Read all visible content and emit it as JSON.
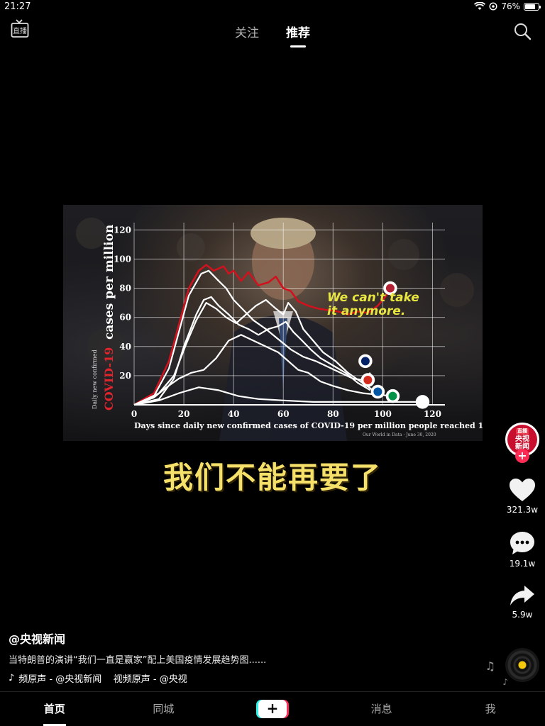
{
  "status_bar": {
    "time": "21:27",
    "battery": "76%",
    "battery_level": 0.76
  },
  "top_bar": {
    "tabs": [
      {
        "label": "关注"
      },
      {
        "label": "推荐"
      }
    ],
    "active_tab": "推荐",
    "live_icon": "live-tv-icon",
    "search_icon": "search-icon"
  },
  "video": {
    "subtitle": "我们不能再要了",
    "overlay_text": [
      "We can't take",
      "it anymore."
    ],
    "chart_data": {
      "type": "line",
      "ylabel_main": "cases per million",
      "ylabel_red": "COVID-19",
      "ylabel_small": "Daily new confirmed",
      "xlabel": "Days since daily new confirmed cases of COVID-19 per million people reached 1",
      "source": "Our World in Data · June 30, 2020",
      "xlim": [
        0,
        125
      ],
      "ylim": [
        0,
        125
      ],
      "x_ticks": [
        "0",
        "20",
        "40",
        "60",
        "80",
        "100",
        "120"
      ],
      "y_ticks": [
        "20",
        "40",
        "60",
        "80",
        "100",
        "120"
      ],
      "grid": true,
      "series": [
        {
          "color": "#d0121e",
          "points": [
            [
              0,
              0
            ],
            [
              8,
              8
            ],
            [
              14,
              30
            ],
            [
              18,
              55
            ],
            [
              22,
              80
            ],
            [
              26,
              92
            ],
            [
              29,
              96
            ],
            [
              32,
              92
            ],
            [
              36,
              95
            ],
            [
              38,
              90
            ],
            [
              40,
              92
            ],
            [
              43,
              85
            ],
            [
              46,
              91
            ],
            [
              50,
              82
            ],
            [
              54,
              84
            ],
            [
              57,
              88
            ],
            [
              60,
              80
            ],
            [
              63,
              78
            ],
            [
              66,
              71
            ],
            [
              70,
              68
            ],
            [
              74,
              66
            ],
            [
              78,
              65
            ],
            [
              82,
              64
            ],
            [
              86,
              62
            ],
            [
              90,
              64
            ],
            [
              94,
              63
            ],
            [
              98,
              68
            ],
            [
              101,
              74
            ],
            [
              103,
              80
            ],
            [
              105,
              78
            ]
          ]
        },
        {
          "color": "#ffffff",
          "points": [
            [
              0,
              0
            ],
            [
              8,
              6
            ],
            [
              14,
              25
            ],
            [
              18,
              50
            ],
            [
              22,
              75
            ],
            [
              27,
              90
            ],
            [
              30,
              92
            ],
            [
              34,
              85
            ],
            [
              37,
              80
            ],
            [
              40,
              72
            ],
            [
              44,
              65
            ],
            [
              48,
              58
            ],
            [
              53,
              52
            ],
            [
              58,
              45
            ],
            [
              63,
              38
            ],
            [
              68,
              33
            ],
            [
              73,
              30
            ],
            [
              78,
              26
            ],
            [
              83,
              22
            ],
            [
              88,
              18
            ],
            [
              92,
              17
            ],
            [
              95,
              22
            ]
          ]
        },
        {
          "color": "#ffffff",
          "points": [
            [
              0,
              0
            ],
            [
              10,
              4
            ],
            [
              16,
              18
            ],
            [
              20,
              40
            ],
            [
              25,
              62
            ],
            [
              28,
              72
            ],
            [
              31,
              74
            ],
            [
              34,
              68
            ],
            [
              38,
              62
            ],
            [
              42,
              55
            ],
            [
              46,
              52
            ],
            [
              50,
              48
            ],
            [
              54,
              52
            ],
            [
              58,
              54
            ],
            [
              61,
              57
            ],
            [
              64,
              50
            ],
            [
              67,
              45
            ],
            [
              71,
              38
            ],
            [
              75,
              32
            ],
            [
              80,
              27
            ],
            [
              85,
              22
            ],
            [
              90,
              15
            ],
            [
              95,
              10
            ]
          ]
        },
        {
          "color": "#ffffff",
          "points": [
            [
              0,
              0
            ],
            [
              10,
              8
            ],
            [
              16,
              20
            ],
            [
              21,
              42
            ],
            [
              25,
              58
            ],
            [
              29,
              70
            ],
            [
              33,
              66
            ],
            [
              37,
              60
            ],
            [
              41,
              56
            ],
            [
              45,
              62
            ],
            [
              49,
              68
            ],
            [
              53,
              72
            ],
            [
              57,
              66
            ],
            [
              60,
              62
            ],
            [
              62,
              70
            ],
            [
              65,
              64
            ],
            [
              68,
              52
            ],
            [
              72,
              44
            ],
            [
              76,
              36
            ],
            [
              81,
              30
            ],
            [
              86,
              22
            ],
            [
              91,
              16
            ],
            [
              97,
              9
            ]
          ]
        },
        {
          "color": "#ffffff",
          "points": [
            [
              0,
              0
            ],
            [
              8,
              5
            ],
            [
              13,
              12
            ],
            [
              18,
              18
            ],
            [
              23,
              22
            ],
            [
              28,
              24
            ],
            [
              33,
              32
            ],
            [
              38,
              44
            ],
            [
              43,
              48
            ],
            [
              48,
              44
            ],
            [
              53,
              40
            ],
            [
              58,
              36
            ],
            [
              62,
              30
            ],
            [
              66,
              24
            ],
            [
              70,
              22
            ],
            [
              75,
              16
            ],
            [
              80,
              13
            ],
            [
              86,
              10
            ],
            [
              92,
              8
            ],
            [
              98,
              7
            ],
            [
              104,
              6
            ]
          ]
        },
        {
          "color": "#ffffff",
          "points": [
            [
              0,
              0
            ],
            [
              10,
              3
            ],
            [
              18,
              8
            ],
            [
              26,
              12
            ],
            [
              34,
              10
            ],
            [
              42,
              6
            ],
            [
              50,
              4
            ],
            [
              60,
              3
            ],
            [
              72,
              2
            ],
            [
              84,
              2
            ],
            [
              96,
              2
            ],
            [
              108,
              2
            ],
            [
              116,
              2
            ]
          ]
        }
      ],
      "flags": [
        {
          "name": "us-flag",
          "x": 103,
          "y": 80
        },
        {
          "name": "uk-flag",
          "x": 93,
          "y": 30
        },
        {
          "name": "canada-flag",
          "x": 94,
          "y": 17
        },
        {
          "name": "france-flag",
          "x": 98,
          "y": 9
        },
        {
          "name": "italy-flag",
          "x": 104,
          "y": 6
        },
        {
          "name": "korea-flag",
          "x": 116,
          "y": 2
        }
      ]
    }
  },
  "right_rail": {
    "avatar_live": "直播",
    "avatar_lines": [
      "央视",
      "新闻"
    ],
    "follow_symbol": "+",
    "like_count": "321.3w",
    "comment_count": "19.1w",
    "share_count": "5.9w"
  },
  "caption": {
    "author": "@央视新闻",
    "description": "当特朗普的演讲“我们一直是赢家”配上美国疫情发展趋势图......",
    "music": "频原声 - @央视新闻    视频原声 - @央视"
  },
  "bottom_nav": {
    "items": [
      {
        "label": "首页"
      },
      {
        "label": "同城"
      },
      {
        "label": "+"
      },
      {
        "label": "消息"
      },
      {
        "label": "我"
      }
    ]
  }
}
